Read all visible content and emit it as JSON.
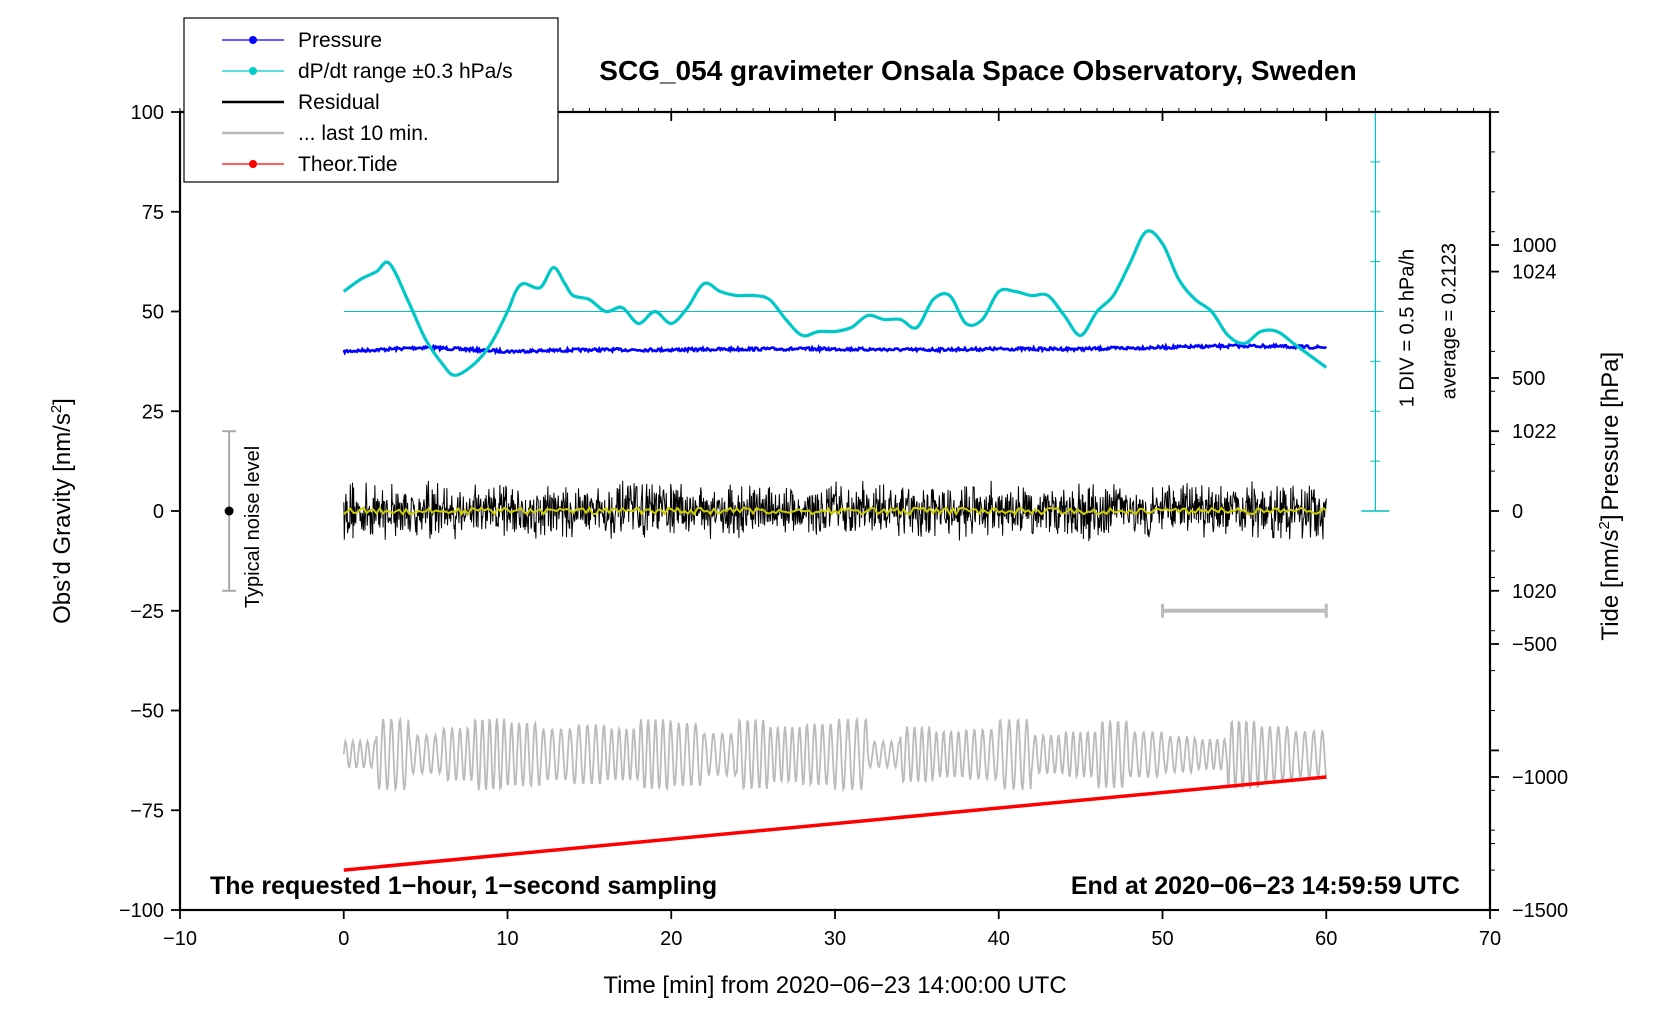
{
  "chart_data": {
    "type": "line",
    "title": "SCG_054 gravimeter Onsala Space Observatory, Sweden",
    "xlabel": "Time [min] from 2020−06−23 14:00:00 UTC",
    "ylabel_left": "Obs’d Gravity [nm/s",
    "ylabel_right_pressure": "Pressure [hPa]",
    "ylabel_right_tide": "Tide [nm/s",
    "unit_superscript": "2",
    "unit_close": "]",
    "xlim": [
      -10,
      70
    ],
    "ylim": [
      -100,
      100
    ],
    "x_ticks": [
      {
        "v": -10,
        "label": "−10"
      },
      {
        "v": 0,
        "label": "0"
      },
      {
        "v": 10,
        "label": "10"
      },
      {
        "v": 20,
        "label": "20"
      },
      {
        "v": 30,
        "label": "30"
      },
      {
        "v": 40,
        "label": "40"
      },
      {
        "v": 50,
        "label": "50"
      },
      {
        "v": 60,
        "label": "60"
      },
      {
        "v": 70,
        "label": "70"
      }
    ],
    "y_ticks": [
      {
        "v": 100,
        "label": "100"
      },
      {
        "v": 75,
        "label": "75"
      },
      {
        "v": 50,
        "label": "50"
      },
      {
        "v": 25,
        "label": "25"
      },
      {
        "v": 0,
        "label": "0"
      },
      {
        "v": -25,
        "label": "−25"
      },
      {
        "v": -50,
        "label": "−50"
      },
      {
        "v": -75,
        "label": "−75"
      },
      {
        "v": -100,
        "label": "−100"
      }
    ],
    "pressure_axis": {
      "range_hPa": [
        1016,
        1026
      ],
      "ticks": [
        {
          "v": 1024,
          "label": "1024"
        },
        {
          "v": 1022,
          "label": "1022"
        },
        {
          "v": 1020,
          "label": "1020"
        }
      ]
    },
    "tide_axis": {
      "range": [
        -1500,
        1500
      ],
      "ticks": [
        {
          "v": 1000,
          "label": "1000"
        },
        {
          "v": 500,
          "label": "500"
        },
        {
          "v": 0,
          "label": "0"
        },
        {
          "v": -500,
          "label": "−500"
        },
        {
          "v": -1000,
          "label": "−1000"
        },
        {
          "v": -1500,
          "label": "−1500"
        }
      ]
    },
    "legend": {
      "position": "top-left",
      "entries": [
        {
          "name": "Pressure",
          "color": "#0000ff",
          "marker": true
        },
        {
          "name": "dP/dt range ±0.3 hPa/s",
          "color": "#00cccc",
          "marker": true
        },
        {
          "name": "Residual",
          "color": "#000000",
          "marker": false
        },
        {
          "name": "... last 10 min.",
          "color": "#bbbbbb",
          "marker": false
        },
        {
          "name": "Theor.Tide",
          "color": "#ff0000",
          "marker": true
        }
      ]
    },
    "series": [
      {
        "name": "Pressure",
        "color": "#0000ff",
        "axis": "pressure",
        "x": [
          0,
          5,
          10,
          15,
          20,
          25,
          30,
          35,
          40,
          45,
          50,
          55,
          60
        ],
        "y": [
          1023.0,
          1023.05,
          1023.0,
          1023.02,
          1023.02,
          1023.03,
          1023.03,
          1023.02,
          1023.03,
          1023.03,
          1023.05,
          1023.07,
          1023.05
        ]
      },
      {
        "name": "dP/dt range ±0.3 hPa/s",
        "color": "#00c8c8",
        "axis": "left",
        "x": [
          0,
          1,
          2,
          2.8,
          4,
          5,
          6,
          6.8,
          8,
          9,
          10,
          10.5,
          11,
          12,
          12.8,
          13.5,
          14,
          15,
          16,
          17,
          18,
          19,
          20,
          21,
          22,
          23,
          24,
          25,
          26,
          27,
          28,
          29,
          30,
          31,
          32,
          33,
          34,
          35,
          36,
          37,
          38,
          39,
          40,
          41,
          42,
          43,
          44,
          45,
          46,
          47,
          48,
          49,
          50,
          51,
          52,
          53,
          54,
          55,
          56,
          57,
          58,
          59,
          60
        ],
        "y": [
          55,
          58,
          60,
          62,
          52,
          43,
          37,
          34,
          37,
          42,
          50,
          55,
          57,
          56,
          61,
          57,
          54,
          53,
          50,
          51,
          47,
          50,
          47,
          51,
          57,
          55,
          54,
          54,
          53,
          48,
          44,
          45,
          45,
          46,
          49,
          48,
          48,
          46,
          53,
          54,
          47,
          48,
          55,
          55,
          54,
          54,
          49,
          44,
          50,
          54,
          62,
          70,
          67,
          58,
          53,
          50,
          44,
          42,
          45,
          45,
          42,
          39,
          36
        ]
      },
      {
        "name": "Residual",
        "color": "#000000",
        "axis": "left",
        "x": [
          0,
          60
        ],
        "y_mean": 0,
        "amplitude": 8
      },
      {
        "name": "Residual (smoothed)",
        "color": "#cccc00",
        "axis": "left",
        "x": [
          0,
          60
        ],
        "y_mean": 0
      },
      {
        "name": "... last 10 min.",
        "color": "#bbbbbb",
        "axis": "left",
        "x": [
          0,
          60
        ],
        "y_mean": -61,
        "amplitude": 9
      },
      {
        "name": "Theor.Tide",
        "color": "#ff0000",
        "axis": "tide",
        "x": [
          0,
          60
        ],
        "y": [
          -1350,
          -1000
        ]
      }
    ],
    "annotations": {
      "dpdt_scale_label": "1 DIV = 0.5 hPa/h",
      "average_label": "average = 0.2123",
      "noise_label": "Typical noise level",
      "noise_range": [
        -20,
        20
      ],
      "last10_bar": [
        50,
        60
      ],
      "note_left": "The requested 1−hour, 1−second sampling",
      "note_right": "End at 2020−06−23 14:59:59 UTC"
    }
  }
}
